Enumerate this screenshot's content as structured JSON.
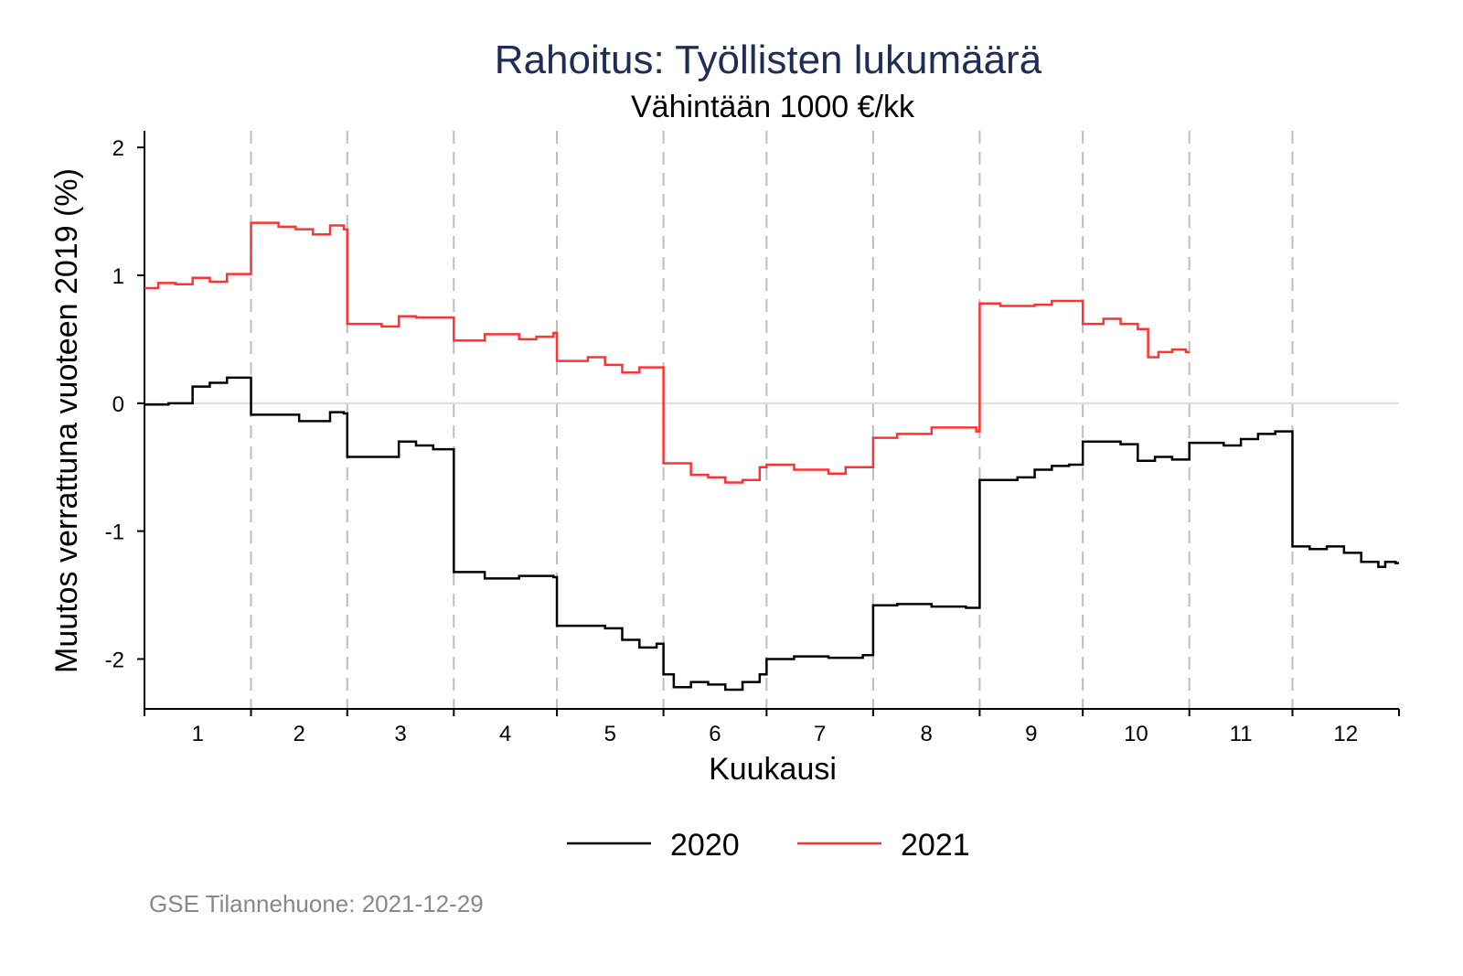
{
  "chart_data": {
    "type": "line",
    "step": true,
    "title": "Rahoitus: Työllisten lukumäärä",
    "subtitle": "Vähintään 1000 €/kk",
    "xlabel": "Kuukausi",
    "ylabel": "Muutos verrattuna vuoteen 2019 (%)",
    "xlim": [
      1,
      365
    ],
    "ylim": [
      -2.39,
      2.13
    ],
    "yticks": [
      -2,
      -1,
      0,
      1,
      2
    ],
    "ytick_labels": [
      "-2",
      "-1",
      "0",
      "1",
      "2"
    ],
    "month_labels": [
      "1",
      "2",
      "3",
      "4",
      "5",
      "6",
      "7",
      "8",
      "9",
      "10",
      "11",
      "12"
    ],
    "month_starts": [
      1,
      32,
      60,
      91,
      121,
      152,
      182,
      213,
      244,
      274,
      305,
      335
    ],
    "reference_line": 0,
    "legend_placement": "bottom",
    "series": [
      {
        "name": "2020",
        "color": "#000000",
        "x": [
          1,
          8,
          15,
          20,
          25,
          32,
          46,
          55,
          59,
          60,
          75,
          80,
          85,
          91,
          100,
          110,
          120,
          121,
          135,
          140,
          145,
          150,
          152,
          155,
          160,
          165,
          170,
          175,
          180,
          182,
          190,
          200,
          210,
          213,
          220,
          230,
          240,
          244,
          255,
          260,
          265,
          270,
          274,
          285,
          290,
          295,
          300,
          305,
          315,
          320,
          325,
          330,
          335,
          340,
          345,
          350,
          355,
          360,
          362,
          365
        ],
        "y": [
          -0.01,
          0.0,
          0.13,
          0.16,
          0.2,
          -0.09,
          -0.14,
          -0.07,
          -0.08,
          -0.42,
          -0.3,
          -0.33,
          -0.36,
          -1.32,
          -1.37,
          -1.35,
          -1.36,
          -1.74,
          -1.76,
          -1.85,
          -1.91,
          -1.88,
          -2.12,
          -2.22,
          -2.18,
          -2.2,
          -2.24,
          -2.18,
          -2.12,
          -2.0,
          -1.98,
          -1.99,
          -1.97,
          -1.58,
          -1.57,
          -1.59,
          -1.6,
          -0.6,
          -0.58,
          -0.52,
          -0.49,
          -0.48,
          -0.3,
          -0.32,
          -0.45,
          -0.42,
          -0.44,
          -0.31,
          -0.33,
          -0.28,
          -0.24,
          -0.22,
          -1.12,
          -1.14,
          -1.12,
          -1.17,
          -1.24,
          -1.28,
          -1.24,
          -1.25
        ]
      },
      {
        "name": "2021",
        "color": "#ff3333",
        "x": [
          1,
          5,
          10,
          15,
          20,
          25,
          32,
          40,
          45,
          50,
          55,
          59,
          60,
          70,
          75,
          80,
          91,
          100,
          110,
          115,
          120,
          121,
          130,
          135,
          140,
          145,
          152,
          160,
          165,
          170,
          175,
          180,
          182,
          190,
          200,
          205,
          213,
          220,
          230,
          240,
          243,
          244,
          250,
          260,
          265,
          274,
          280,
          285,
          290,
          293,
          296,
          300,
          304
        ],
        "y": [
          0.9,
          0.94,
          0.93,
          0.98,
          0.95,
          1.01,
          1.41,
          1.38,
          1.36,
          1.32,
          1.39,
          1.36,
          0.62,
          0.6,
          0.68,
          0.67,
          0.49,
          0.54,
          0.5,
          0.52,
          0.55,
          0.33,
          0.36,
          0.3,
          0.24,
          0.28,
          -0.47,
          -0.56,
          -0.58,
          -0.62,
          -0.6,
          -0.5,
          -0.48,
          -0.52,
          -0.55,
          -0.5,
          -0.27,
          -0.24,
          -0.19,
          -0.19,
          -0.22,
          0.78,
          0.76,
          0.77,
          0.8,
          0.62,
          0.66,
          0.62,
          0.58,
          0.36,
          0.4,
          0.42,
          0.4
        ]
      }
    ],
    "footer": "GSE Tilannehuone: 2021-12-29",
    "title_color": "#1f2d56"
  }
}
